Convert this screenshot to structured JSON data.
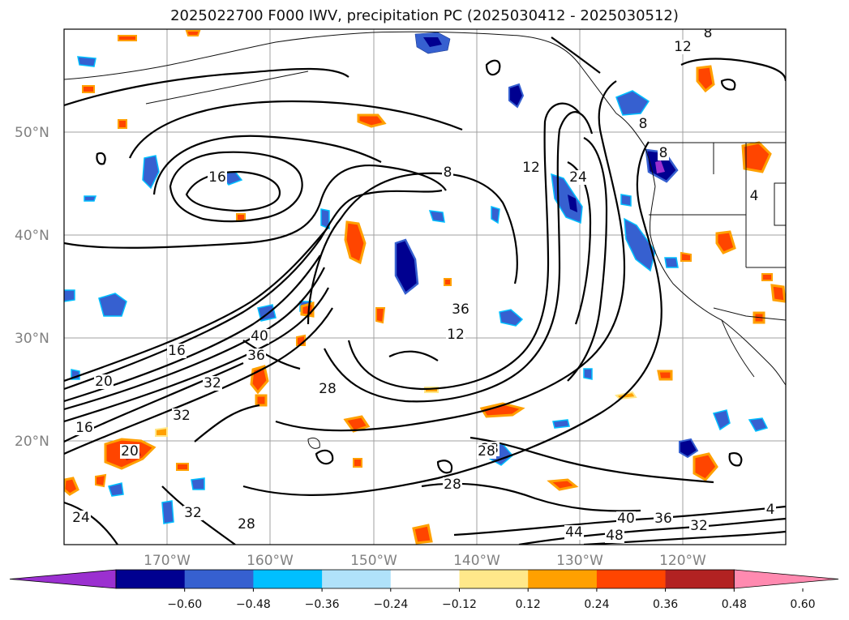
{
  "title": "2025022700 F000 IWV, precipitation PC (2025030412 - 2025030512)",
  "latitude_labels": [
    "50°N",
    "40°N",
    "30°N",
    "20°N"
  ],
  "longitude_labels": [
    "170°W",
    "160°W",
    "150°W",
    "140°W",
    "130°W",
    "120°W"
  ],
  "colorbar": {
    "tick_labels": [
      "−0.60",
      "−0.48",
      "−0.36",
      "−0.24",
      "−0.12",
      "0.12",
      "0.24",
      "0.36",
      "0.48",
      "0.60"
    ],
    "colors": [
      "#9b30d0",
      "#000090",
      "#3660d0",
      "#00bfff",
      "#b0e2fa",
      "#ffffff",
      "#ffe88a",
      "#ffa000",
      "#ff4500",
      "#b22222",
      "#ff8ab0"
    ],
    "extend": "both"
  },
  "contour_labels": [
    {
      "text": "12"
    },
    {
      "text": "8"
    },
    {
      "text": "16"
    },
    {
      "text": "8"
    },
    {
      "text": "12"
    },
    {
      "text": "24"
    },
    {
      "text": "8"
    },
    {
      "text": "8"
    },
    {
      "text": "4"
    },
    {
      "text": "28"
    },
    {
      "text": "40"
    },
    {
      "text": "36"
    },
    {
      "text": "16"
    },
    {
      "text": "20"
    },
    {
      "text": "32"
    },
    {
      "text": "12"
    },
    {
      "text": "28"
    },
    {
      "text": "36"
    },
    {
      "text": "32"
    },
    {
      "text": "16"
    },
    {
      "text": "20"
    },
    {
      "text": "28"
    },
    {
      "text": "28"
    },
    {
      "text": "32"
    },
    {
      "text": "24"
    },
    {
      "text": "28"
    },
    {
      "text": "40"
    },
    {
      "text": "36"
    },
    {
      "text": "32"
    },
    {
      "text": "44"
    },
    {
      "text": "48"
    },
    {
      "text": "4"
    }
  ]
}
